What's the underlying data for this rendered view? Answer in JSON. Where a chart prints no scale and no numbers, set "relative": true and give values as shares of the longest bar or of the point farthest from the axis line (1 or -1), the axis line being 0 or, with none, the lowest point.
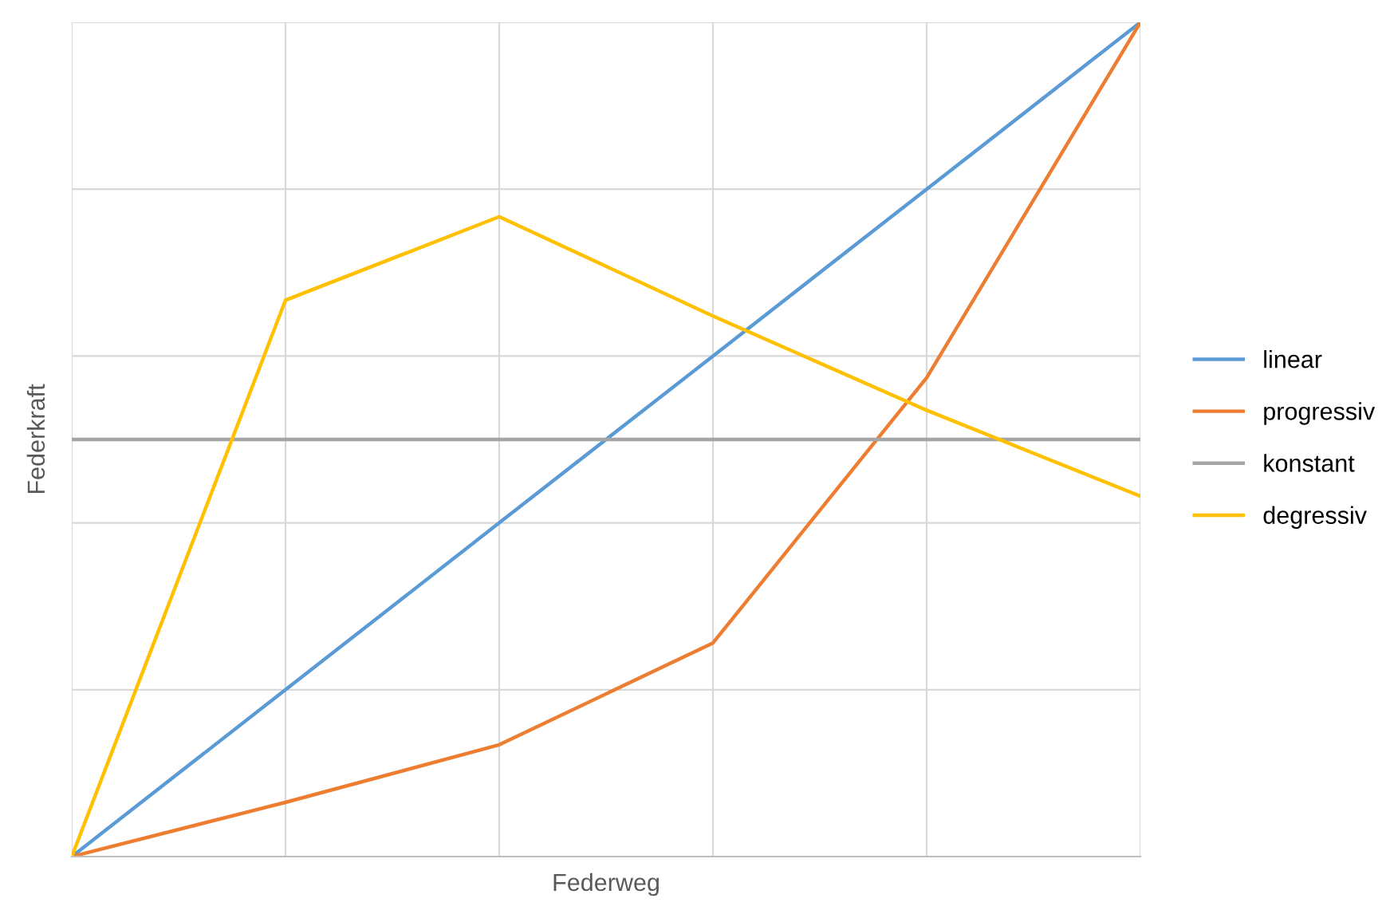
{
  "chart_data": {
    "type": "line",
    "relative": true,
    "xlabel": "Federweg",
    "ylabel": "Federkraft",
    "categories": [
      null,
      null,
      null,
      null,
      null,
      null
    ],
    "series": [
      {
        "name": "linear",
        "color": "#5b9bd5",
        "values": [
          0,
          0.2,
          0.4,
          0.6,
          0.8,
          1
        ]
      },
      {
        "name": "progressiv",
        "color": "#ed7d31",
        "values": [
          0,
          0.065,
          0.134,
          0.256,
          0.574,
          1
        ]
      },
      {
        "name": "konstant",
        "color": "#a5a5a5",
        "values": [
          0.5,
          0.5,
          0.5,
          0.5,
          0.5,
          0.5
        ]
      },
      {
        "name": "degressiv",
        "color": "#ffc000",
        "values": [
          0,
          0.667,
          0.767,
          0.648,
          0.535,
          0.432
        ]
      }
    ],
    "grid": true,
    "legend": "right",
    "marker": "none",
    "line_style": "solid"
  }
}
